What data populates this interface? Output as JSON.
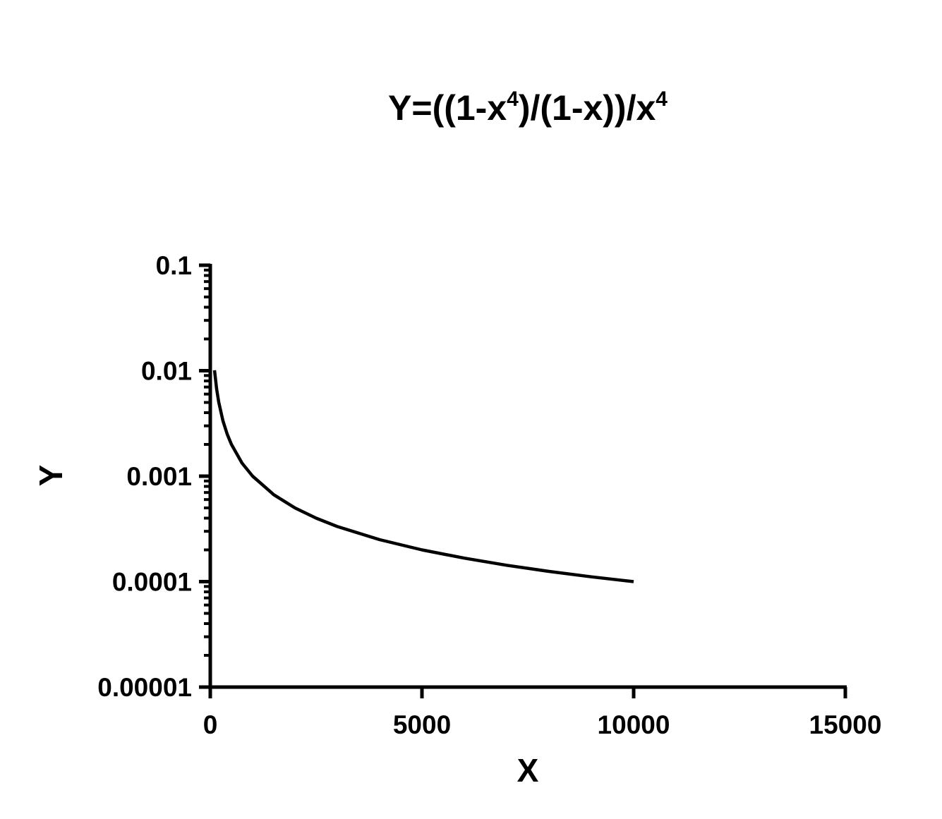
{
  "chart_data": {
    "type": "line",
    "title": {
      "parts": [
        {
          "text": "Y=((1-x",
          "sup": false
        },
        {
          "text": "4",
          "sup": true
        },
        {
          "text": ")/(1-x))/x",
          "sup": false
        },
        {
          "text": "4",
          "sup": true
        }
      ]
    },
    "xlabel": "X",
    "ylabel": "Y",
    "x_scale": "linear",
    "y_scale": "log",
    "xlim": [
      0,
      15000
    ],
    "ylim": [
      1e-05,
      0.1
    ],
    "x_ticks": [
      {
        "value": 0,
        "label": "0"
      },
      {
        "value": 5000,
        "label": "5000"
      },
      {
        "value": 10000,
        "label": "10000"
      },
      {
        "value": 15000,
        "label": "15000"
      }
    ],
    "y_ticks": [
      {
        "value": 0.1,
        "label": "0.1"
      },
      {
        "value": 0.01,
        "label": "0.01"
      },
      {
        "value": 0.001,
        "label": "0.001"
      },
      {
        "value": 0.0001,
        "label": "0.0001"
      },
      {
        "value": 1e-05,
        "label": "0.00001"
      }
    ],
    "grid": false,
    "legend": "none",
    "series": [
      {
        "color": "#000000",
        "x": [
          100,
          150,
          200,
          300,
          400,
          500,
          750,
          1000,
          1500,
          2000,
          2500,
          3000,
          4000,
          5000,
          6000,
          7000,
          8000,
          9000,
          10000
        ],
        "y": [
          0.0101,
          0.00671,
          0.00503,
          0.00334,
          0.0025,
          0.002,
          0.00133,
          0.001,
          0.000667,
          0.0005,
          0.0004,
          0.000333,
          0.00025,
          0.0002,
          0.000167,
          0.000143,
          0.000125,
          0.000111,
          0.0001
        ]
      }
    ]
  }
}
